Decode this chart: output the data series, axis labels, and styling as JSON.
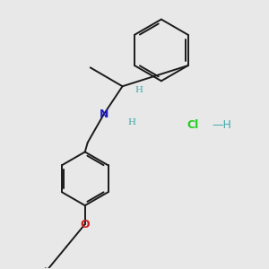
{
  "bg_color": "#e8e8e8",
  "line_color": "#1a1a1a",
  "N_color": "#2222bb",
  "O_color": "#cc2020",
  "Cl_color": "#22cc22",
  "H_teal_color": "#44aaaa",
  "lw": 1.4,
  "N_label": "N",
  "O_label": "O",
  "H1_label": "H",
  "H2_label": "H",
  "Cl_label": "Cl",
  "H_label": "H"
}
